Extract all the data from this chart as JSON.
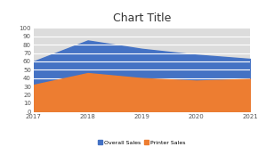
{
  "title": "Chart Title",
  "x": [
    2017,
    2018,
    2019,
    2020,
    2021
  ],
  "overall_sales": [
    60,
    85,
    75,
    68,
    63
  ],
  "printer_sales": [
    32,
    46,
    40,
    37,
    39
  ],
  "overall_color": "#4472C4",
  "printer_color": "#ED7D31",
  "ylim": [
    0,
    100
  ],
  "yticks": [
    0,
    10,
    20,
    30,
    40,
    50,
    60,
    70,
    80,
    90,
    100
  ],
  "background_color": "#DCDCDC",
  "legend_labels": [
    "Overall Sales",
    "Printer Sales"
  ],
  "title_fontsize": 9,
  "tick_fontsize": 5,
  "grid_color": "#FFFFFF",
  "grid_linewidth": 0.8
}
